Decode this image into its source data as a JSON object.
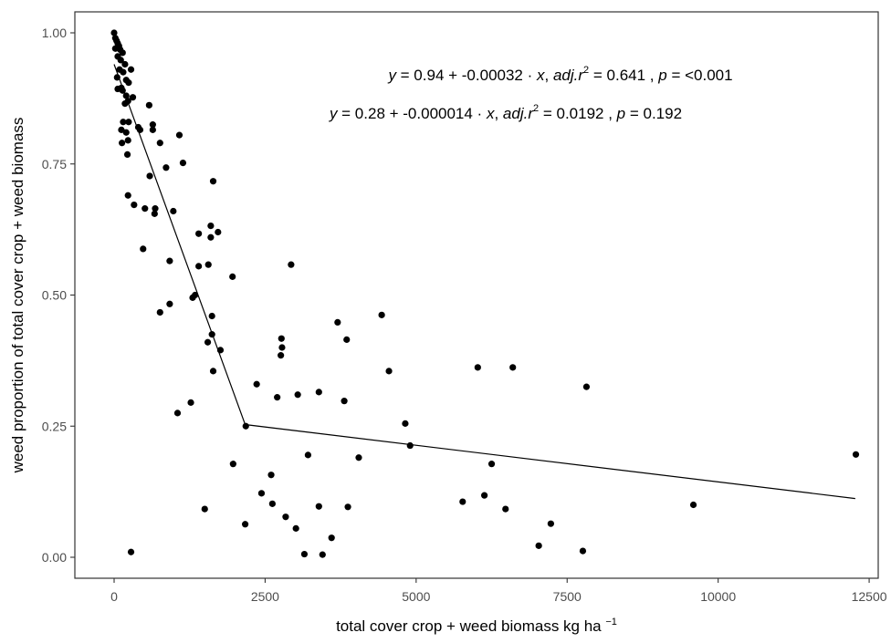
{
  "chart_data": {
    "type": "scatter",
    "xlabel_main": "total cover crop + weed biomass kg ha",
    "xlabel_sup": "−1",
    "ylabel": "weed proportion of total cover crop + weed biomass",
    "xlim": [
      -650,
      12650
    ],
    "ylim": [
      -0.04,
      1.04
    ],
    "x_ticks": [
      0,
      2500,
      5000,
      7500,
      10000,
      12500
    ],
    "x_tick_labels": [
      "0",
      "2500",
      "5000",
      "7500",
      "10000",
      "12500"
    ],
    "y_ticks": [
      0.0,
      0.25,
      0.5,
      0.75,
      1.0
    ],
    "y_tick_labels": [
      "0.00",
      "0.25",
      "0.50",
      "0.75",
      "1.00"
    ],
    "grid": false,
    "equations": [
      {
        "y": "y",
        "rest": " = 0.94 + -0.00032 · x,  adj.r = 0.641 ,  p = <0.001",
        "parts": [
          "y",
          " = 0.94 + -0.00032 · ",
          "x",
          ",  ",
          "adj.r",
          "2",
          " = 0.641 ,  ",
          "p",
          " = <0.001"
        ]
      },
      {
        "y": "y",
        "rest": " = 0.28 + -0.000014 · x,  adj.r = 0.0192 ,  p = 0.192",
        "parts": [
          "y",
          " = 0.28 + -0.000014 · ",
          "x",
          ",  ",
          "adj.r",
          "2",
          " = 0.0192 ,  ",
          "p",
          " = 0.192"
        ]
      }
    ],
    "fit_line": {
      "x": [
        0,
        2170,
        12270
      ],
      "y": [
        0.94,
        0.253,
        0.112
      ]
    },
    "points": [
      [
        0,
        1.0
      ],
      [
        20,
        0.99
      ],
      [
        40,
        0.985
      ],
      [
        60,
        0.98
      ],
      [
        80,
        0.975
      ],
      [
        20,
        0.97
      ],
      [
        100,
        0.968
      ],
      [
        140,
        0.962
      ],
      [
        60,
        0.955
      ],
      [
        110,
        0.948
      ],
      [
        180,
        0.94
      ],
      [
        90,
        0.93
      ],
      [
        150,
        0.925
      ],
      [
        280,
        0.93
      ],
      [
        50,
        0.915
      ],
      [
        200,
        0.91
      ],
      [
        240,
        0.905
      ],
      [
        120,
        0.895
      ],
      [
        60,
        0.893
      ],
      [
        140,
        0.89
      ],
      [
        200,
        0.88
      ],
      [
        310,
        0.877
      ],
      [
        230,
        0.87
      ],
      [
        180,
        0.865
      ],
      [
        580,
        0.862
      ],
      [
        150,
        0.83
      ],
      [
        240,
        0.83
      ],
      [
        400,
        0.82
      ],
      [
        640,
        0.825
      ],
      [
        640,
        0.815
      ],
      [
        430,
        0.815
      ],
      [
        120,
        0.815
      ],
      [
        200,
        0.81
      ],
      [
        1080,
        0.805
      ],
      [
        230,
        0.795
      ],
      [
        130,
        0.79
      ],
      [
        760,
        0.79
      ],
      [
        220,
        0.768
      ],
      [
        1140,
        0.752
      ],
      [
        860,
        0.743
      ],
      [
        590,
        0.727
      ],
      [
        1640,
        0.717
      ],
      [
        230,
        0.69
      ],
      [
        330,
        0.672
      ],
      [
        510,
        0.665
      ],
      [
        680,
        0.665
      ],
      [
        980,
        0.66
      ],
      [
        670,
        0.655
      ],
      [
        1600,
        0.632
      ],
      [
        1720,
        0.62
      ],
      [
        1400,
        0.617
      ],
      [
        1600,
        0.61
      ],
      [
        480,
        0.588
      ],
      [
        920,
        0.565
      ],
      [
        1400,
        0.555
      ],
      [
        1560,
        0.558
      ],
      [
        2930,
        0.558
      ],
      [
        1960,
        0.535
      ],
      [
        1300,
        0.495
      ],
      [
        1340,
        0.5
      ],
      [
        920,
        0.483
      ],
      [
        760,
        0.467
      ],
      [
        1620,
        0.46
      ],
      [
        4430,
        0.462
      ],
      [
        3700,
        0.448
      ],
      [
        1620,
        0.425
      ],
      [
        3850,
        0.415
      ],
      [
        2770,
        0.417
      ],
      [
        1550,
        0.41
      ],
      [
        2780,
        0.4
      ],
      [
        1760,
        0.395
      ],
      [
        2760,
        0.385
      ],
      [
        1640,
        0.355
      ],
      [
        4550,
        0.355
      ],
      [
        6020,
        0.362
      ],
      [
        6600,
        0.362
      ],
      [
        2360,
        0.33
      ],
      [
        7820,
        0.325
      ],
      [
        3390,
        0.315
      ],
      [
        3040,
        0.31
      ],
      [
        2700,
        0.305
      ],
      [
        3810,
        0.298
      ],
      [
        1270,
        0.295
      ],
      [
        1050,
        0.275
      ],
      [
        4820,
        0.255
      ],
      [
        2180,
        0.25
      ],
      [
        4900,
        0.213
      ],
      [
        3210,
        0.195
      ],
      [
        4050,
        0.19
      ],
      [
        1970,
        0.178
      ],
      [
        6250,
        0.178
      ],
      [
        2600,
        0.157
      ],
      [
        2440,
        0.122
      ],
      [
        6130,
        0.118
      ],
      [
        5770,
        0.106
      ],
      [
        2620,
        0.102
      ],
      [
        3390,
        0.097
      ],
      [
        3870,
        0.096
      ],
      [
        9590,
        0.1
      ],
      [
        6480,
        0.092
      ],
      [
        1500,
        0.092
      ],
      [
        2840,
        0.077
      ],
      [
        2170,
        0.063
      ],
      [
        7230,
        0.064
      ],
      [
        3010,
        0.055
      ],
      [
        3600,
        0.037
      ],
      [
        7030,
        0.022
      ],
      [
        7760,
        0.012
      ],
      [
        280,
        0.01
      ],
      [
        3150,
        0.006
      ],
      [
        3450,
        0.005
      ],
      [
        12280,
        0.196
      ]
    ]
  }
}
